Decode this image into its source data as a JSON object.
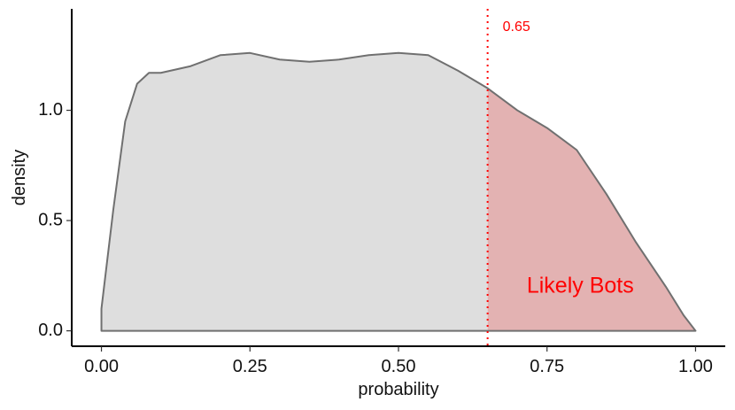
{
  "chart_data": {
    "type": "area",
    "xlabel": "probability",
    "ylabel": "density",
    "xlim": [
      -0.05,
      1.05
    ],
    "ylim": [
      -0.07,
      1.46
    ],
    "xticks": [
      "0.00",
      "0.25",
      "0.50",
      "0.75",
      "1.00"
    ],
    "yticks": [
      "0.0",
      "0.5",
      "1.0"
    ],
    "grid": false,
    "legend": "none",
    "colors": {
      "fill_below": "#dedede",
      "fill_above": "#e3b2b2",
      "outline": "#707070",
      "annotation": "#ff0000"
    },
    "x": [
      0.0,
      0.02,
      0.04,
      0.06,
      0.08,
      0.1,
      0.15,
      0.2,
      0.25,
      0.3,
      0.35,
      0.4,
      0.45,
      0.5,
      0.55,
      0.6,
      0.65,
      0.7,
      0.75,
      0.8,
      0.85,
      0.9,
      0.95,
      0.98,
      1.0
    ],
    "density": [
      0.1,
      0.55,
      0.95,
      1.12,
      1.17,
      1.17,
      1.2,
      1.25,
      1.26,
      1.23,
      1.22,
      1.23,
      1.25,
      1.26,
      1.25,
      1.18,
      1.1,
      1.0,
      0.92,
      0.82,
      0.62,
      0.4,
      0.2,
      0.07,
      0.0
    ],
    "threshold": {
      "value": 0.65,
      "label": "0.65"
    },
    "region_label": "Likely Bots"
  }
}
